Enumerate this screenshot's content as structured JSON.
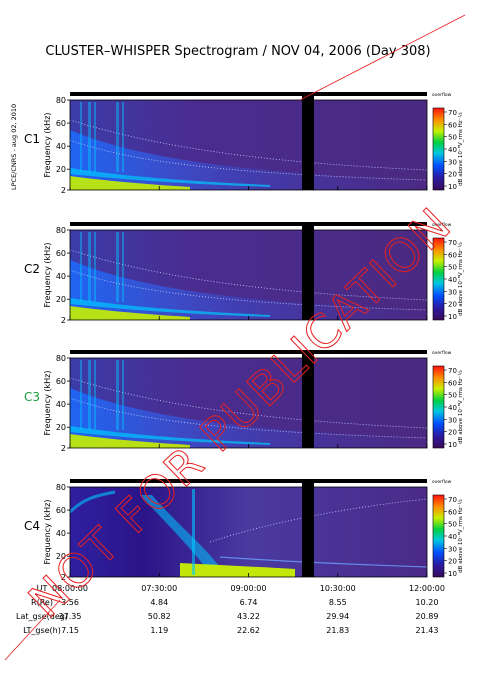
{
  "chart_data": {
    "type": "heatmap",
    "title": "CLUSTER–WHISPER Spectrogram / NOV 04, 2006 (Day 308)",
    "credit": "LPCE/CNRS - aug 02, 2010",
    "watermark": "NOT FOR PUBLICATION",
    "x_ticks": [
      "08:00:00",
      "07:30:00",
      "09:00:00",
      "10:30:00",
      "12:00:00"
    ],
    "panels": [
      {
        "name": "C1",
        "name_color": "#000000",
        "ylabel": "Frequency (kHz)",
        "yticks": [
          "80",
          "60",
          "40",
          "20",
          "2"
        ],
        "ylim": [
          2,
          80
        ],
        "colorbar": {
          "unit": "dB above 10⁻⁸V_rms Hz⁻½",
          "ticks": [
            "70",
            "60",
            "50",
            "40",
            "30",
            "20",
            "10"
          ],
          "overflow_label": "overflow"
        }
      },
      {
        "name": "C2",
        "name_color": "#000000",
        "ylabel": "Frequency (kHz)",
        "yticks": [
          "80",
          "60",
          "40",
          "20",
          "2"
        ],
        "ylim": [
          2,
          80
        ],
        "colorbar": {
          "unit": "dB above 10⁻⁸V_rms Hz⁻½",
          "ticks": [
            "70",
            "60",
            "50",
            "40",
            "30",
            "20",
            "10"
          ],
          "overflow_label": "overflow"
        }
      },
      {
        "name": "C3",
        "name_color": "#1a9e3a",
        "ylabel": "Frequency (kHz)",
        "yticks": [
          "80",
          "60",
          "40",
          "20",
          "2"
        ],
        "ylim": [
          2,
          80
        ],
        "colorbar": {
          "unit": "dB above 10⁻⁸V_rms Hz⁻½",
          "ticks": [
            "70",
            "60",
            "50",
            "40",
            "30",
            "20",
            "10"
          ],
          "overflow_label": "overflow"
        }
      },
      {
        "name": "C4",
        "name_color": "#000000",
        "ylabel": "Frequency (kHz)",
        "yticks": [
          "80",
          "60",
          "40",
          "20",
          "2"
        ],
        "ylim": [
          2,
          80
        ],
        "colorbar": {
          "unit": "dB above 10⁻⁸V_rms Hz⁻½",
          "ticks": [
            "70",
            "60",
            "50",
            "40",
            "30",
            "20",
            "10"
          ],
          "overflow_label": "overflow"
        }
      }
    ],
    "ephemeris": [
      {
        "label": "UT",
        "values": [
          "08:00:00",
          "07:30:00",
          "09:00:00",
          "10:30:00",
          "12:00:00"
        ]
      },
      {
        "label": "R(Re)",
        "values": [
          "3.56",
          "4.84",
          "6.74",
          "8.55",
          "10.20"
        ]
      },
      {
        "label": "Lat_gse(deg)",
        "values": [
          "37.35",
          "50.82",
          "43.22",
          "29.94",
          "20.89"
        ]
      },
      {
        "label": "LT_gse(h)",
        "values": [
          "7.15",
          "1.19",
          "22.62",
          "21.83",
          "21.43"
        ]
      }
    ],
    "colors": {
      "background": "#4b2a8a",
      "band_low": "#c8f000",
      "band_mid": "#00c8ff",
      "watermark": "#e82020"
    }
  }
}
